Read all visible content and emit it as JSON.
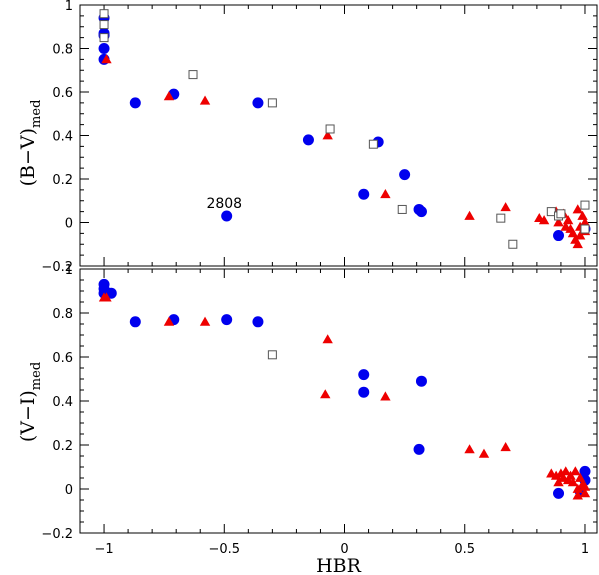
{
  "chart_data": [
    {
      "type": "scatter",
      "panel": "top",
      "ylabel": "(B−V)",
      "ylabel_subscript": "med",
      "xlim": [
        -1.1,
        1.05
      ],
      "ylim": [
        -0.2,
        1.0
      ],
      "x_ticks": [
        -1,
        -0.5,
        0,
        0.5,
        1
      ],
      "x_tick_labels": [],
      "y_ticks": [
        -0.2,
        0,
        0.2,
        0.4,
        0.6,
        0.8,
        1
      ],
      "y_tick_labels": [
        "−0.2",
        "0",
        "0.2",
        "0.4",
        "0.6",
        "0.8",
        "1"
      ],
      "annotations": [
        {
          "text": "2808",
          "x": -0.5,
          "y": 0.09
        }
      ],
      "series": [
        {
          "marker": "filled-circle",
          "color": "#0000ee",
          "points": [
            [
              -1,
              0.94
            ],
            [
              -1,
              0.87
            ],
            [
              -1,
              0.86
            ],
            [
              -1,
              0.8
            ],
            [
              -1,
              0.75
            ],
            [
              -0.87,
              0.55
            ],
            [
              -0.71,
              0.59
            ],
            [
              -0.49,
              0.03
            ],
            [
              -0.36,
              0.55
            ],
            [
              -0.15,
              0.38
            ],
            [
              0.08,
              0.13
            ],
            [
              0.14,
              0.37
            ],
            [
              0.25,
              0.22
            ],
            [
              0.31,
              0.06
            ],
            [
              0.32,
              0.05
            ],
            [
              0.89,
              -0.06
            ],
            [
              1.0,
              -0.03
            ]
          ]
        },
        {
          "marker": "filled-triangle",
          "color": "#ee0000",
          "points": [
            [
              -0.99,
              0.75
            ],
            [
              -0.73,
              0.58
            ],
            [
              -0.58,
              0.56
            ],
            [
              -0.07,
              0.4
            ],
            [
              0.17,
              0.13
            ],
            [
              0.52,
              0.03
            ],
            [
              0.67,
              0.07
            ],
            [
              0.81,
              0.02
            ],
            [
              0.83,
              0.01
            ],
            [
              0.88,
              0.05
            ],
            [
              0.89,
              0.0
            ],
            [
              0.91,
              0.04
            ],
            [
              0.92,
              -0.02
            ],
            [
              0.93,
              0.01
            ],
            [
              0.94,
              -0.03
            ],
            [
              0.95,
              -0.05
            ],
            [
              0.96,
              -0.08
            ],
            [
              0.97,
              -0.1
            ],
            [
              0.97,
              0.06
            ],
            [
              0.98,
              -0.02
            ],
            [
              0.98,
              -0.06
            ],
            [
              0.99,
              0.03
            ],
            [
              1.0,
              0.0
            ],
            [
              1.0,
              -0.04
            ]
          ]
        },
        {
          "marker": "open-square",
          "color": "#555555",
          "points": [
            [
              -1,
              0.96
            ],
            [
              -1,
              0.91
            ],
            [
              -1,
              0.85
            ],
            [
              -0.63,
              0.68
            ],
            [
              -0.3,
              0.55
            ],
            [
              -0.06,
              0.43
            ],
            [
              0.12,
              0.36
            ],
            [
              0.24,
              0.06
            ],
            [
              0.65,
              0.02
            ],
            [
              0.7,
              -0.1
            ],
            [
              0.86,
              0.05
            ],
            [
              0.89,
              0.03
            ],
            [
              0.9,
              0.04
            ],
            [
              1.0,
              0.08
            ],
            [
              1.0,
              -0.03
            ]
          ]
        }
      ]
    },
    {
      "type": "scatter",
      "panel": "bottom",
      "xlabel": "HBR",
      "ylabel": "(V−I)",
      "ylabel_subscript": "med",
      "xlim": [
        -1.1,
        1.05
      ],
      "ylim": [
        -0.2,
        1.0
      ],
      "x_ticks": [
        -1,
        -0.5,
        0,
        0.5,
        1
      ],
      "x_tick_labels": [
        "−1",
        "−0.5",
        "0",
        "0.5",
        "1"
      ],
      "y_ticks": [
        -0.2,
        0,
        0.2,
        0.4,
        0.6,
        0.8,
        1
      ],
      "y_tick_labels": [
        "−0.2",
        "0",
        "0.2",
        "0.4",
        "0.6",
        "0.8",
        "1"
      ],
      "series": [
        {
          "marker": "filled-circle",
          "color": "#0000ee",
          "points": [
            [
              -1,
              0.93
            ],
            [
              -1,
              0.91
            ],
            [
              -1,
              0.89
            ],
            [
              -0.97,
              0.89
            ],
            [
              -0.87,
              0.76
            ],
            [
              -0.71,
              0.77
            ],
            [
              -0.49,
              0.77
            ],
            [
              -0.36,
              0.76
            ],
            [
              0.08,
              0.52
            ],
            [
              0.08,
              0.44
            ],
            [
              0.32,
              0.49
            ],
            [
              0.31,
              0.18
            ],
            [
              0.89,
              -0.02
            ],
            [
              0.98,
              -0.01
            ],
            [
              1.0,
              0.08
            ],
            [
              1.0,
              0.04
            ]
          ]
        },
        {
          "marker": "filled-triangle",
          "color": "#ee0000",
          "points": [
            [
              -1,
              0.87
            ],
            [
              -0.99,
              0.87
            ],
            [
              -0.73,
              0.76
            ],
            [
              -0.58,
              0.76
            ],
            [
              -0.07,
              0.68
            ],
            [
              -0.08,
              0.43
            ],
            [
              0.17,
              0.42
            ],
            [
              0.52,
              0.18
            ],
            [
              0.58,
              0.16
            ],
            [
              0.67,
              0.19
            ],
            [
              0.86,
              0.07
            ],
            [
              0.88,
              0.06
            ],
            [
              0.89,
              0.03
            ],
            [
              0.9,
              0.07
            ],
            [
              0.91,
              0.05
            ],
            [
              0.92,
              0.08
            ],
            [
              0.93,
              0.04
            ],
            [
              0.94,
              0.06
            ],
            [
              0.95,
              0.03
            ],
            [
              0.96,
              0.08
            ],
            [
              0.97,
              0.0
            ],
            [
              0.97,
              -0.03
            ],
            [
              0.98,
              0.05
            ],
            [
              0.99,
              0.02
            ],
            [
              1.0,
              -0.02
            ],
            [
              1.0,
              0.01
            ]
          ]
        },
        {
          "marker": "open-square",
          "color": "#555555",
          "points": [
            [
              -0.3,
              0.61
            ]
          ]
        }
      ]
    }
  ]
}
